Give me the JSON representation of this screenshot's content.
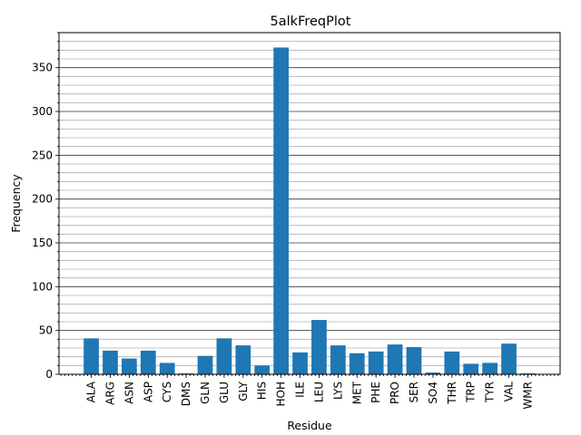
{
  "chart_data": {
    "type": "bar",
    "title": "5alkFreqPlot",
    "xlabel": "Residue",
    "ylabel": "Frequency",
    "categories": [
      "ALA",
      "ARG",
      "ASN",
      "ASP",
      "CYS",
      "DMS",
      "GLN",
      "GLU",
      "GLY",
      "HIS",
      "HOH",
      "ILE",
      "LEU",
      "LYS",
      "MET",
      "PHE",
      "PRO",
      "SER",
      "SO4",
      "THR",
      "TRP",
      "TYR",
      "VAL",
      "WMR"
    ],
    "values": [
      41,
      27,
      18,
      27,
      13,
      1,
      21,
      41,
      33,
      10,
      373,
      25,
      62,
      33,
      24,
      26,
      34,
      31,
      2,
      26,
      12,
      13,
      35,
      1
    ],
    "ylim": [
      0,
      390
    ],
    "yticks": [
      0,
      50,
      100,
      150,
      200,
      250,
      300,
      350
    ],
    "y_minor_step": 10,
    "grid": true,
    "bar_color": "#1f77b4"
  }
}
